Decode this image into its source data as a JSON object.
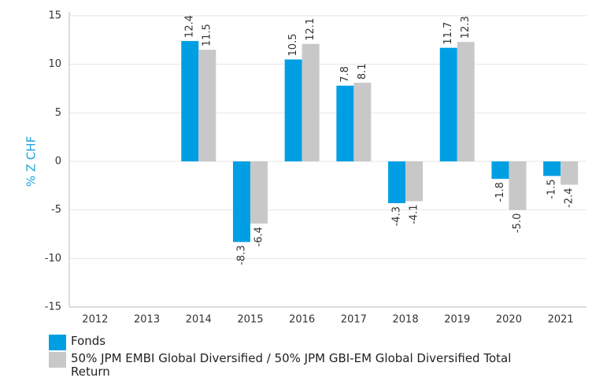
{
  "chart_data": {
    "type": "bar",
    "y_label": "% Z CHF",
    "categories": [
      "2012",
      "2013",
      "2014",
      "2015",
      "2016",
      "2017",
      "2018",
      "2019",
      "2020",
      "2021"
    ],
    "series": [
      {
        "name": "Fonds",
        "color": "#009fe3",
        "values": [
          null,
          null,
          12.4,
          -8.3,
          10.5,
          7.8,
          -4.3,
          11.7,
          -1.8,
          -1.5
        ],
        "value_labels": [
          null,
          null,
          "12.4",
          "-8.3",
          "10.5",
          "7.8",
          "-4.3",
          "11.7",
          "-1.8",
          "-1.5"
        ]
      },
      {
        "name": "50% JPM EMBI Global Diversified / 50% JPM GBI-EM Global Diversified Total Return",
        "color": "#c8c8c8",
        "values": [
          null,
          null,
          11.5,
          -6.4,
          12.1,
          8.1,
          -4.1,
          12.3,
          -5.0,
          -2.4
        ],
        "value_labels": [
          null,
          null,
          "11.5",
          "-6.4",
          "12.1",
          "8.1",
          "-4.1",
          "12.3",
          "-5.0",
          "-2.4"
        ]
      }
    ],
    "ylim": [
      -15,
      15
    ],
    "yticks": [
      15,
      10,
      5,
      0,
      -5,
      -10,
      -15
    ],
    "grid": true
  }
}
